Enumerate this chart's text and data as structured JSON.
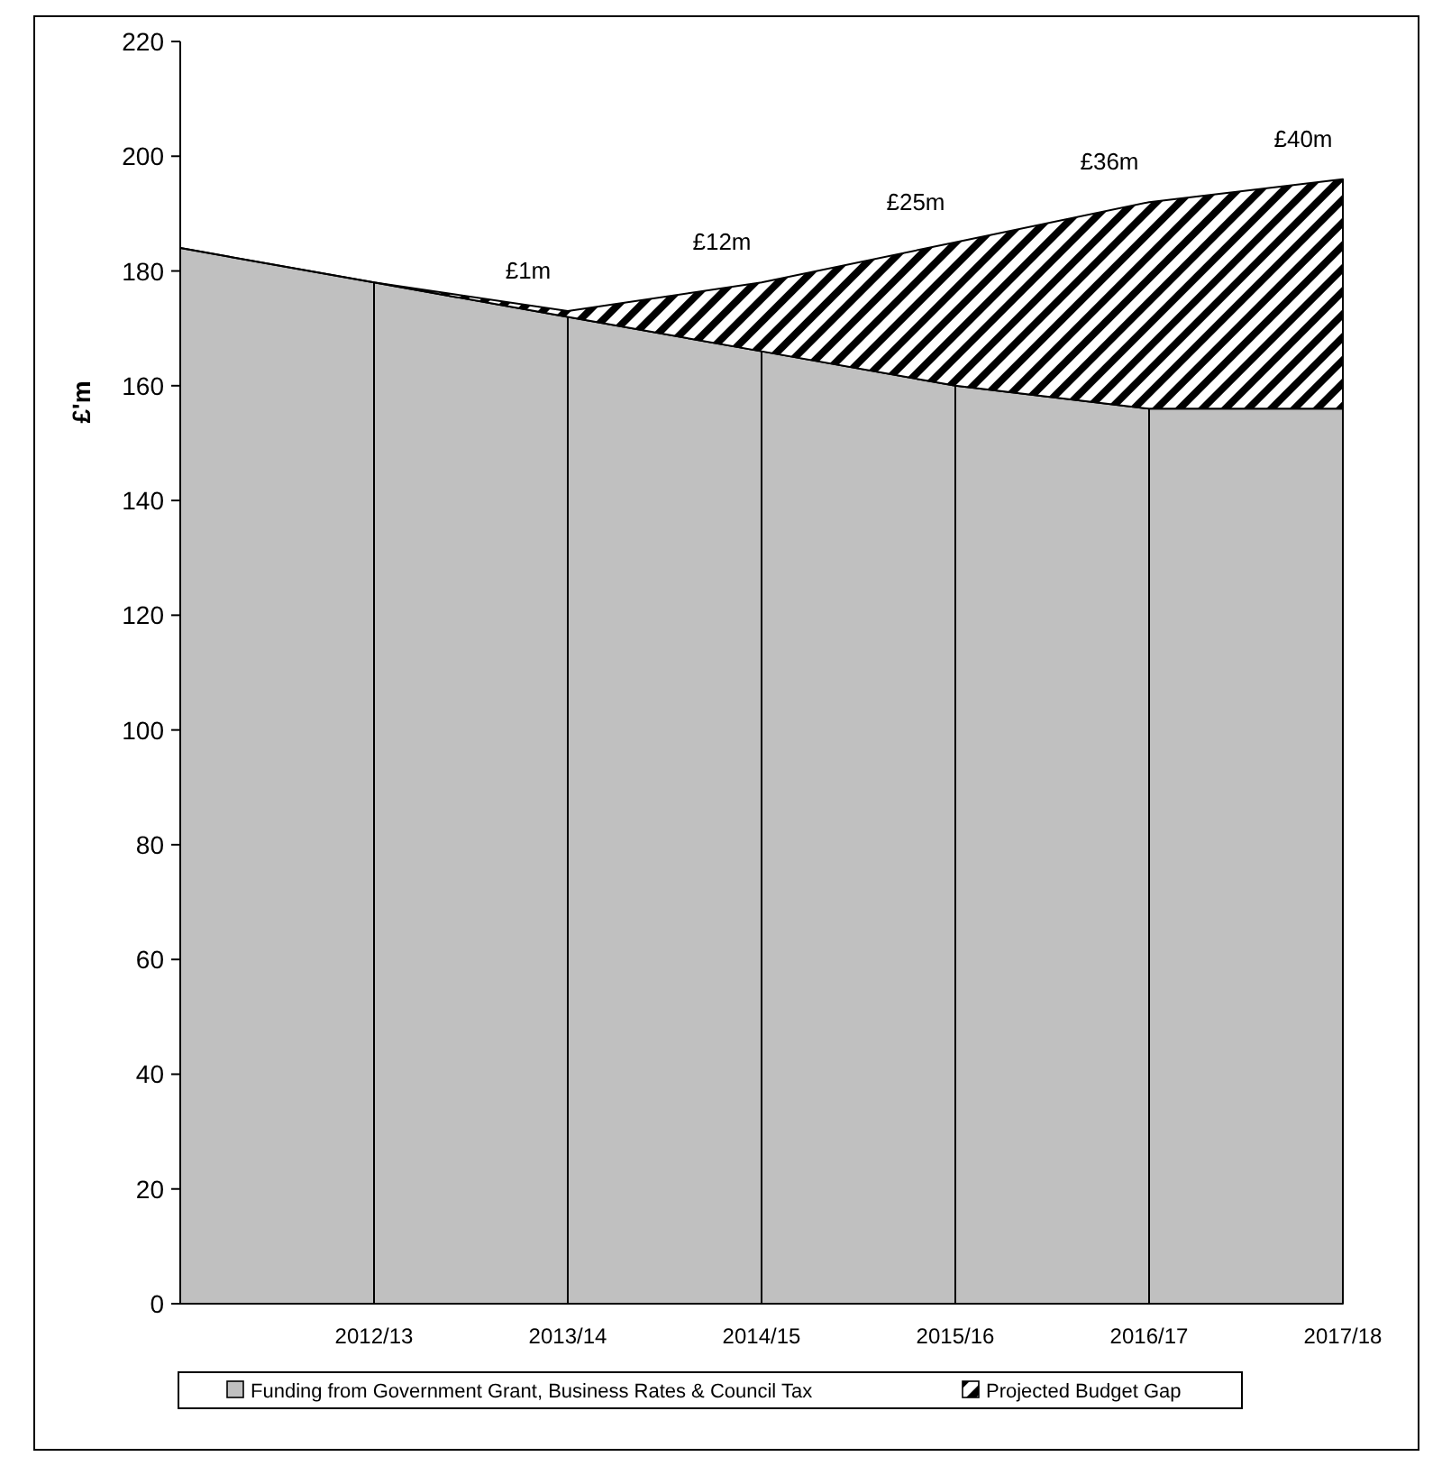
{
  "chart_data": {
    "type": "area",
    "stacked": true,
    "ylabel": "£'m",
    "categories": [
      null,
      "2012/13",
      "2013/14",
      "2014/15",
      "2015/16",
      "2016/17",
      "2017/18"
    ],
    "ylim": [
      0,
      220
    ],
    "yticks": [
      0,
      20,
      40,
      60,
      80,
      100,
      120,
      140,
      160,
      180,
      200,
      220
    ],
    "grid": "x",
    "legend": "bottom",
    "series": [
      {
        "name": "Funding from Government Grant, Business Rates & Council Tax",
        "color": "#c0c0c0",
        "values": [
          184,
          178,
          172,
          166,
          160,
          156,
          156
        ]
      },
      {
        "name": "Projected Budget Gap",
        "color": "#000000",
        "values": [
          0,
          0,
          1,
          12,
          25,
          36,
          40
        ],
        "value_labels": [
          null,
          null,
          "£1m",
          "£12m",
          "£25m",
          "£36m",
          "£40m"
        ]
      }
    ]
  }
}
